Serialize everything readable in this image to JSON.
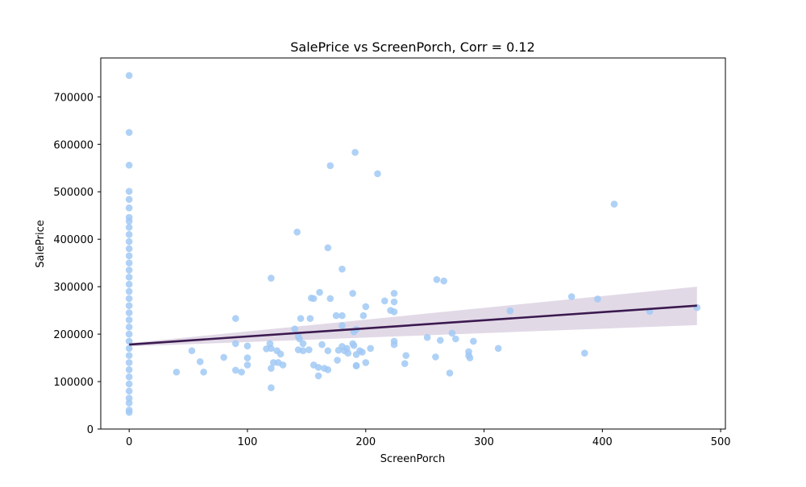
{
  "chart_data": {
    "type": "scatter",
    "title": "SalePrice vs ScreenPorch, Corr = 0.12",
    "xlabel": "ScreenPorch",
    "ylabel": "SalePrice",
    "xlim": [
      -24,
      504
    ],
    "ylim": [
      0,
      782000
    ],
    "xticks": [
      0,
      100,
      200,
      300,
      400,
      500
    ],
    "yticks": [
      0,
      100000,
      200000,
      300000,
      400000,
      500000,
      600000,
      700000
    ],
    "grid": false,
    "colors": {
      "points": "#a1c9f4",
      "regression_line": "#3b1a4f",
      "confidence_band": "#cfc0d7"
    },
    "series": [
      {
        "points": [
          [
            0,
            745000
          ],
          [
            0,
            625000
          ],
          [
            0,
            556000
          ],
          [
            0,
            501000
          ],
          [
            0,
            484000
          ],
          [
            0,
            466000
          ],
          [
            0,
            446000
          ],
          [
            0,
            438000
          ],
          [
            0,
            425000
          ],
          [
            0,
            410000
          ],
          [
            0,
            395000
          ],
          [
            0,
            380000
          ],
          [
            0,
            365000
          ],
          [
            0,
            350000
          ],
          [
            0,
            335000
          ],
          [
            0,
            320000
          ],
          [
            0,
            305000
          ],
          [
            0,
            290000
          ],
          [
            0,
            275000
          ],
          [
            0,
            260000
          ],
          [
            0,
            245000
          ],
          [
            0,
            230000
          ],
          [
            0,
            215000
          ],
          [
            0,
            200000
          ],
          [
            0,
            185000
          ],
          [
            0,
            170000
          ],
          [
            0,
            155000
          ],
          [
            0,
            140000
          ],
          [
            0,
            125000
          ],
          [
            0,
            110000
          ],
          [
            0,
            95000
          ],
          [
            0,
            80000
          ],
          [
            0,
            65000
          ],
          [
            0,
            55000
          ],
          [
            0,
            40000
          ],
          [
            0,
            35000
          ],
          [
            40,
            120000
          ],
          [
            53,
            165000
          ],
          [
            60,
            142000
          ],
          [
            63,
            120000
          ],
          [
            80,
            151000
          ],
          [
            90,
            233000
          ],
          [
            90,
            180000
          ],
          [
            90,
            124000
          ],
          [
            95,
            120000
          ],
          [
            100,
            175000
          ],
          [
            100,
            150000
          ],
          [
            100,
            135000
          ],
          [
            116,
            169000
          ],
          [
            119,
            180000
          ],
          [
            120,
            318000
          ],
          [
            120,
            170000
          ],
          [
            120,
            128000
          ],
          [
            120,
            87000
          ],
          [
            122,
            140000
          ],
          [
            125,
            165000
          ],
          [
            126,
            140000
          ],
          [
            128,
            158000
          ],
          [
            130,
            135000
          ],
          [
            140,
            211000
          ],
          [
            142,
            415000
          ],
          [
            143,
            195000
          ],
          [
            143,
            167000
          ],
          [
            144,
            190000
          ],
          [
            145,
            233000
          ],
          [
            147,
            180000
          ],
          [
            147,
            165000
          ],
          [
            152,
            167000
          ],
          [
            153,
            233000
          ],
          [
            154,
            276000
          ],
          [
            156,
            275000
          ],
          [
            156,
            135000
          ],
          [
            160,
            130000
          ],
          [
            160,
            112000
          ],
          [
            161,
            288000
          ],
          [
            163,
            178000
          ],
          [
            165,
            128000
          ],
          [
            168,
            382000
          ],
          [
            168,
            165000
          ],
          [
            168,
            125000
          ],
          [
            170,
            555000
          ],
          [
            170,
            275000
          ],
          [
            175,
            239000
          ],
          [
            176,
            145000
          ],
          [
            177,
            166000
          ],
          [
            180,
            337000
          ],
          [
            180,
            239000
          ],
          [
            180,
            218000
          ],
          [
            180,
            174000
          ],
          [
            182,
            165000
          ],
          [
            184,
            170000
          ],
          [
            185,
            160000
          ],
          [
            189,
            286000
          ],
          [
            189,
            180000
          ],
          [
            190,
            205000
          ],
          [
            190,
            176000
          ],
          [
            191,
            583000
          ],
          [
            192,
            210000
          ],
          [
            192,
            157000
          ],
          [
            192,
            134000
          ],
          [
            192,
            133000
          ],
          [
            195,
            165000
          ],
          [
            197,
            162000
          ],
          [
            198,
            239000
          ],
          [
            200,
            258000
          ],
          [
            200,
            140000
          ],
          [
            204,
            170000
          ],
          [
            210,
            538000
          ],
          [
            216,
            270000
          ],
          [
            221,
            250000
          ],
          [
            224,
            286000
          ],
          [
            224,
            268000
          ],
          [
            224,
            247000
          ],
          [
            224,
            185000
          ],
          [
            224,
            178000
          ],
          [
            233,
            138000
          ],
          [
            234,
            155000
          ],
          [
            252,
            193000
          ],
          [
            259,
            152000
          ],
          [
            260,
            315000
          ],
          [
            263,
            187000
          ],
          [
            266,
            312000
          ],
          [
            271,
            118000
          ],
          [
            273,
            202000
          ],
          [
            276,
            190000
          ],
          [
            287,
            163000
          ],
          [
            287,
            155000
          ],
          [
            288,
            150000
          ],
          [
            291,
            185000
          ],
          [
            312,
            170000
          ],
          [
            322,
            249000
          ],
          [
            374,
            279000
          ],
          [
            385,
            160000
          ],
          [
            396,
            274000
          ],
          [
            410,
            474000
          ],
          [
            440,
            248000
          ],
          [
            480,
            256000
          ]
        ]
      }
    ],
    "regression": {
      "x": [
        0,
        480
      ],
      "y": [
        178000,
        260000
      ],
      "band_low": [
        174000,
        219000
      ],
      "band_high": [
        181000,
        300000
      ]
    }
  }
}
